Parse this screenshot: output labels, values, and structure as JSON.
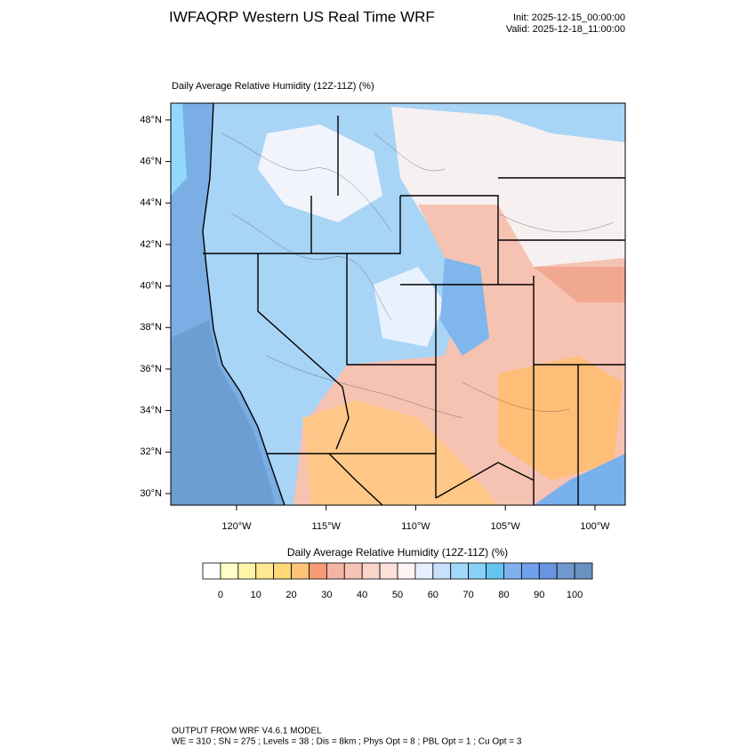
{
  "header": {
    "title": "IWFAQRP Western US Real Time WRF",
    "init": "Init: 2025-12-15_00:00:00",
    "valid": "Valid: 2025-12-18_11:00:00"
  },
  "map": {
    "label": "Daily Average Relative Humidity (12Z-11Z)   (%)",
    "xlim": [
      -123.67,
      -98.31
    ],
    "ylim": [
      29.44,
      48.81
    ],
    "xticks": [
      {
        "value": -120,
        "label": "120°W"
      },
      {
        "value": -115,
        "label": "115°W"
      },
      {
        "value": -110,
        "label": "110°W"
      },
      {
        "value": -105,
        "label": "105°W"
      },
      {
        "value": -100,
        "label": "100°W"
      }
    ],
    "yticks": [
      {
        "value": 30,
        "label": "30°N"
      },
      {
        "value": 32,
        "label": "32°N"
      },
      {
        "value": 34,
        "label": "34°N"
      },
      {
        "value": 36,
        "label": "36°N"
      },
      {
        "value": 38,
        "label": "38°N"
      },
      {
        "value": 40,
        "label": "40°N"
      },
      {
        "value": 42,
        "label": "42°N"
      },
      {
        "value": 44,
        "label": "44°N"
      },
      {
        "value": 46,
        "label": "46°N"
      },
      {
        "value": 48,
        "label": "48°N"
      }
    ]
  },
  "colorbar": {
    "title": "Daily Average Relative Humidity (12Z-11Z)  (%)",
    "ticks": [
      0,
      10,
      20,
      30,
      40,
      50,
      60,
      70,
      80,
      90,
      100
    ],
    "colors": [
      "#ffffff",
      "#ffffc8",
      "#fff4a8",
      "#ffe890",
      "#ffd878",
      "#ffc478",
      "#f89a78",
      "#f4b4a4",
      "#f6c4b4",
      "#f9d4c8",
      "#fce2da",
      "#fff2f2",
      "#e6eeff",
      "#c8e0fc",
      "#a4d8f8",
      "#88d0f8",
      "#64c4f0",
      "#80b0f0",
      "#70a0ec",
      "#6894e0",
      "#7098d0",
      "#6a92c0"
    ]
  },
  "footer": {
    "line1": "OUTPUT FROM WRF V4.6.1 MODEL",
    "line2": "WE = 310 ; SN = 275 ; Levels = 38 ; Dis = 8km ; Phys Opt = 8 ; PBL Opt = 1 ; Cu Opt = 3"
  }
}
